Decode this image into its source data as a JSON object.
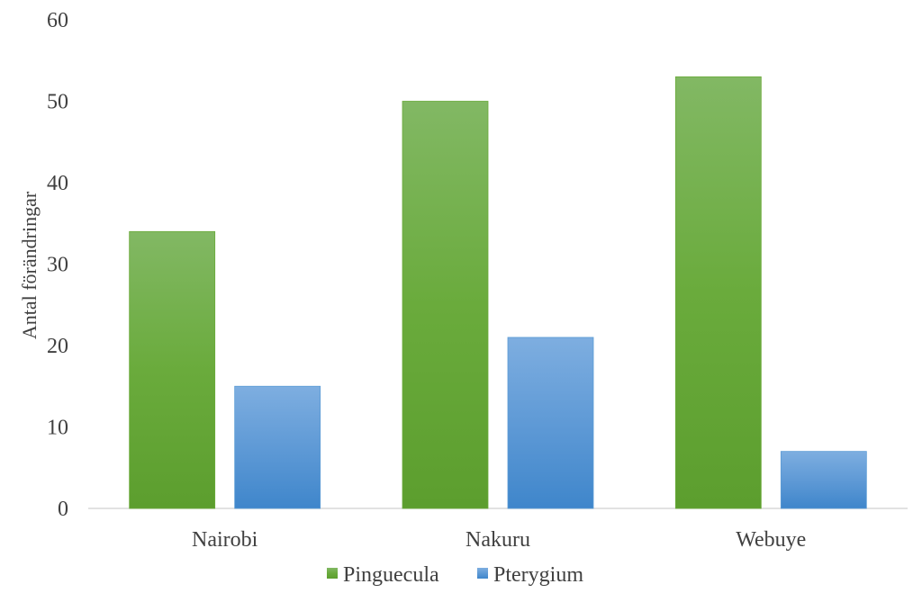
{
  "chart_data": {
    "type": "bar",
    "title": "",
    "xlabel": "",
    "ylabel": "Antal förändringar",
    "ylim": [
      0,
      60
    ],
    "yticks": [
      0,
      10,
      20,
      30,
      40,
      50,
      60
    ],
    "categories": [
      "Nairobi",
      "Nakuru",
      "Webuye"
    ],
    "series": [
      {
        "name": "Pinguecula",
        "values": [
          34,
          50,
          53
        ],
        "color": "#6aaa3a"
      },
      {
        "name": "Pterygium",
        "values": [
          15,
          21,
          7
        ],
        "color": "#5b9bd5"
      }
    ],
    "grid": false,
    "legend_position": "bottom"
  }
}
